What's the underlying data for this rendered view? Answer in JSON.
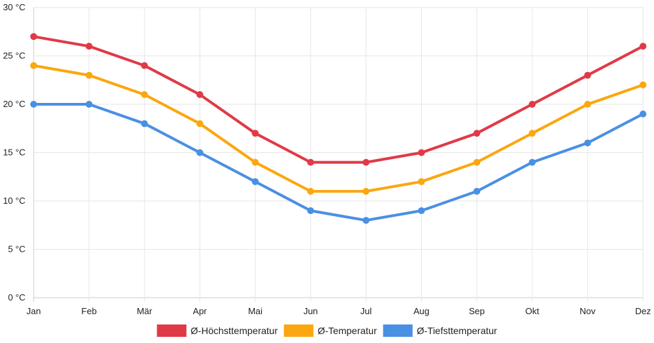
{
  "chart_data": {
    "type": "line",
    "title": "",
    "xlabel": "",
    "ylabel": "",
    "categories": [
      "Jan",
      "Feb",
      "Mär",
      "Apr",
      "Mai",
      "Jun",
      "Jul",
      "Aug",
      "Sep",
      "Okt",
      "Nov",
      "Dez"
    ],
    "y_ticks": [
      "0 °C",
      "5 °C",
      "10 °C",
      "15 °C",
      "20 °C",
      "25 °C",
      "30 °C"
    ],
    "ylim": [
      0,
      30
    ],
    "grid": true,
    "legend_position": "bottom",
    "series": [
      {
        "name": "Ø-Höchsttemperatur",
        "color": "#e03a47",
        "values": [
          27,
          26,
          24,
          21,
          17,
          14,
          14,
          15,
          17,
          20,
          23,
          26
        ]
      },
      {
        "name": "Ø-Temperatur",
        "color": "#fba70f",
        "values": [
          24,
          23,
          21,
          18,
          14,
          11,
          11,
          12,
          14,
          17,
          20,
          22
        ]
      },
      {
        "name": "Ø-Tiefsttemperatur",
        "color": "#4a90e2",
        "values": [
          20,
          20,
          18,
          15,
          12,
          9,
          8,
          9,
          11,
          14,
          16,
          19
        ]
      }
    ]
  }
}
